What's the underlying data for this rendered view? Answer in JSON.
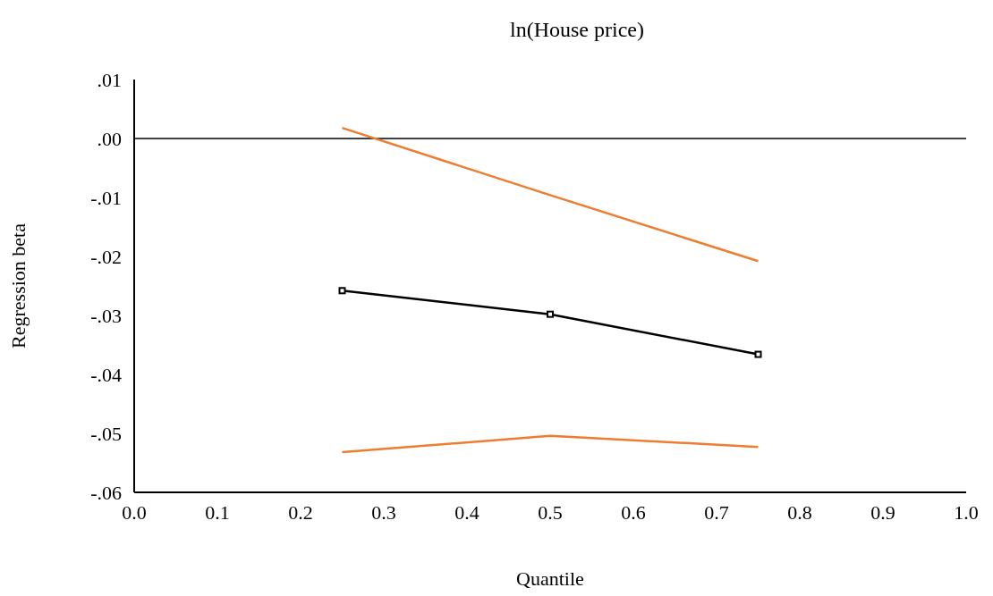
{
  "chart_data": {
    "type": "line",
    "title": "ln(House price)",
    "xlabel": "Quantile",
    "ylabel": "Regression beta",
    "x": [
      0.25,
      0.5,
      0.75
    ],
    "series": [
      {
        "name": null,
        "color": "#000000",
        "values": [
          -0.0258,
          -0.0298,
          -0.0366
        ],
        "marker": "square"
      },
      {
        "name": null,
        "color": "#ed7d31",
        "values": [
          0.0018,
          -0.0096,
          -0.0208
        ]
      },
      {
        "name": null,
        "color": "#ed7d31",
        "values": [
          -0.0532,
          -0.0504,
          -0.0523
        ]
      }
    ],
    "marker": "none",
    "grid": false,
    "legend": false,
    "xlim": [
      0,
      1
    ],
    "xticks": [
      {
        "value": 0,
        "label": "0.0"
      },
      {
        "value": 0.1,
        "label": "0.1"
      },
      {
        "value": 0.2,
        "label": "0.2"
      },
      {
        "value": 0.3,
        "label": "0.3"
      },
      {
        "value": 0.4,
        "label": "0.4"
      },
      {
        "value": 0.5,
        "label": "0.5"
      },
      {
        "value": 0.6,
        "label": "0.6"
      },
      {
        "value": 0.7,
        "label": "0.7"
      },
      {
        "value": 0.8,
        "label": "0.8"
      },
      {
        "value": 0.9,
        "label": "0.9"
      },
      {
        "value": 1,
        "label": "1.0"
      }
    ],
    "ylim": [
      -0.06,
      0.01
    ],
    "yticks": [
      {
        "value": -0.06,
        "label": "-.06"
      },
      {
        "value": -0.05,
        "label": "-.05"
      },
      {
        "value": -0.04,
        "label": "-.04"
      },
      {
        "value": -0.03,
        "label": "-.03"
      },
      {
        "value": -0.02,
        "label": "-.02"
      },
      {
        "value": -0.01,
        "label": "-.01"
      },
      {
        "value": 0,
        "label": ".00"
      },
      {
        "value": 0.01,
        "label": ".01"
      }
    ],
    "ref_lines": [
      {
        "axis": "y",
        "value": 0,
        "color": "#000000"
      }
    ]
  }
}
